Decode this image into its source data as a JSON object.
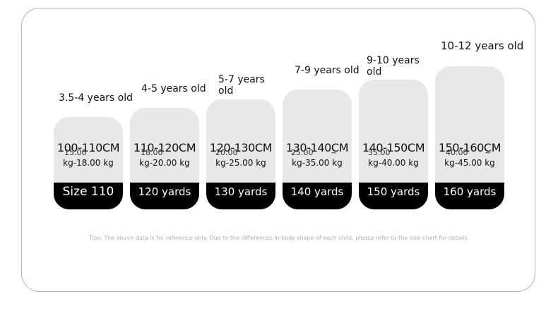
{
  "sizes": [
    {
      "age": "3.5-4 years old",
      "height": "100-110CM",
      "weight_top": "15.00",
      "weight_dash": "",
      "weight_bottom": "kg-18.00 kg",
      "label": "Size 110"
    },
    {
      "age": "4-5 years old",
      "height": "110-120CM",
      "weight_top": "18.00",
      "weight_dash": "",
      "weight_bottom": "kg-20.00 kg",
      "label": "120 yards"
    },
    {
      "age": "5-7 years old",
      "height": "120-130CM",
      "weight_top": "20.00",
      "weight_dash": "",
      "weight_bottom": "kg-25.00 kg",
      "label": "130 yards"
    },
    {
      "age": "7-9 years old",
      "height": "130-140CM",
      "weight_top": "25.00",
      "weight_dash": "~",
      "weight_bottom": "kg-35.00 kg",
      "label": "140 yards"
    },
    {
      "age": "9-10 years old",
      "height": "140-150CM",
      "weight_top": "35.00",
      "weight_dash": "",
      "weight_bottom": "kg-40.00 kg",
      "label": "150 yards"
    },
    {
      "age": "10-12 years old",
      "height": "150-160CM",
      "weight_top": "40.00",
      "weight_dash": "~",
      "weight_bottom": "kg-45.00 kg",
      "label": "160 yards"
    }
  ],
  "tips": "Tips: The above data is for reference only. Due to the differences in body shape of each child, please refer to the size chart for details."
}
